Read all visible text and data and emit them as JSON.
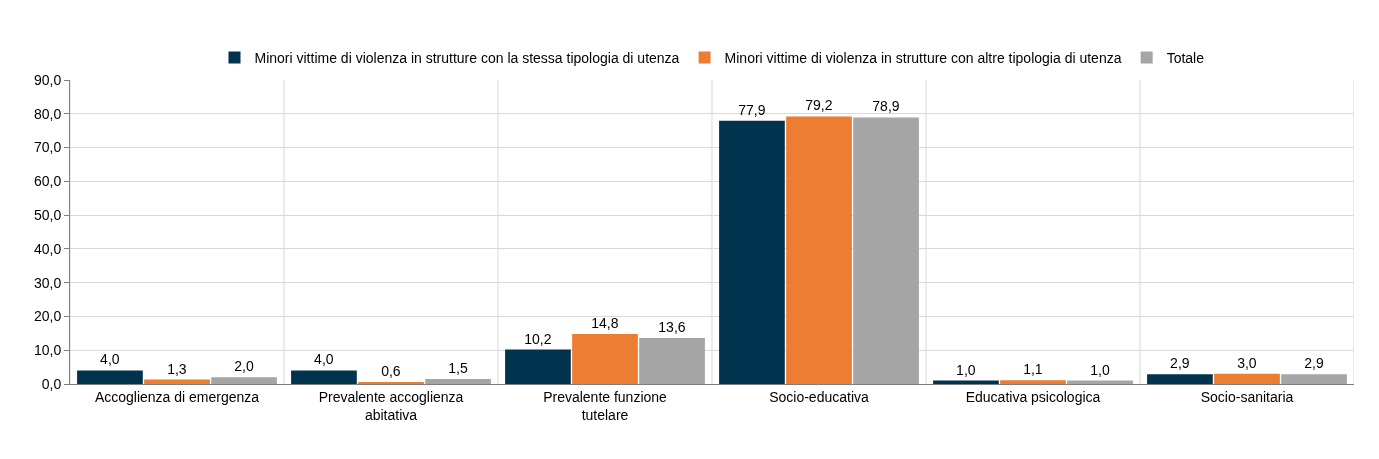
{
  "chart_data": {
    "type": "bar",
    "categories": [
      "Accoglienza di emergenza",
      "Prevalente accoglienza abitativa",
      "Prevalente funzione tutelare",
      "Socio-educativa",
      "Educativa psicologica",
      "Socio-sanitaria"
    ],
    "series": [
      {
        "name": "Minori vittime di violenza in strutture con la stessa tipologia di utenza",
        "color": "#00334e",
        "values": [
          4.0,
          4.0,
          10.2,
          77.9,
          1.0,
          2.9
        ],
        "value_labels": [
          "4,0",
          "4,0",
          "10,2",
          "77,9",
          "1,0",
          "2,9"
        ]
      },
      {
        "name": "Minori vittime di violenza in strutture con altre tipologia di utenza",
        "color": "#ed7d31",
        "values": [
          1.3,
          0.6,
          14.8,
          79.2,
          1.1,
          3.0
        ],
        "value_labels": [
          "1,3",
          "0,6",
          "14,8",
          "79,2",
          "1,1",
          "3,0"
        ]
      },
      {
        "name": "Totale",
        "color": "#a5a5a5",
        "values": [
          2.0,
          1.5,
          13.6,
          78.9,
          1.0,
          2.9
        ],
        "value_labels": [
          "2,0",
          "1,5",
          "13,6",
          "78,9",
          "1,0",
          "2,9"
        ]
      }
    ],
    "ylim": [
      0,
      90
    ],
    "yticks": [
      {
        "value": 0,
        "label": "0,0"
      },
      {
        "value": 10,
        "label": "10,0"
      },
      {
        "value": 20,
        "label": "20,0"
      },
      {
        "value": 30,
        "label": "30,0"
      },
      {
        "value": 40,
        "label": "40,0"
      },
      {
        "value": 50,
        "label": "50,0"
      },
      {
        "value": 60,
        "label": "60,0"
      },
      {
        "value": 70,
        "label": "70,0"
      },
      {
        "value": 80,
        "label": "80,0"
      },
      {
        "value": 90,
        "label": "90,0"
      }
    ],
    "grid": true,
    "legend": "top"
  }
}
